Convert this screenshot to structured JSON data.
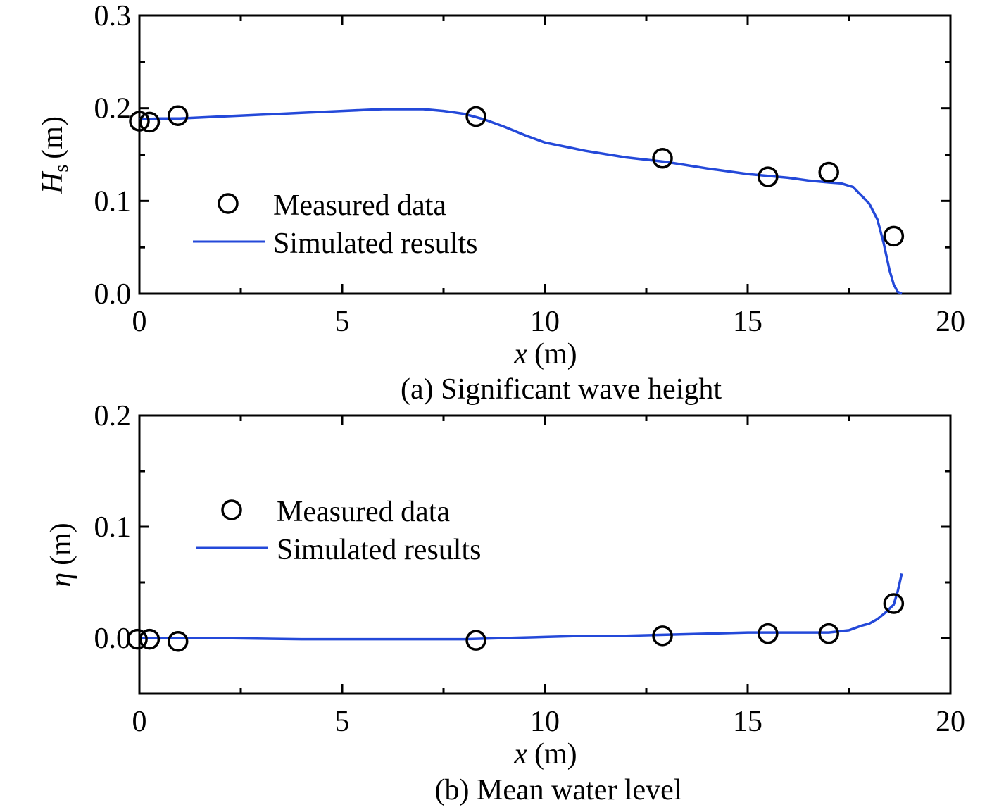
{
  "chart_data": [
    {
      "type": "line",
      "caption": "(a) Significant wave height",
      "xlabel_var": "x",
      "xlabel_unit": "(m)",
      "ylabel_var": "H",
      "ylabel_sub": "s",
      "ylabel_unit": "(m)",
      "xlim": [
        0,
        20
      ],
      "ylim": [
        0,
        0.3
      ],
      "xticks": [
        0,
        5,
        10,
        15,
        20
      ],
      "yticks": [
        0.0,
        0.1,
        0.2,
        0.3
      ],
      "xtick_labels": [
        "0",
        "5",
        "10",
        "15",
        "20"
      ],
      "ytick_labels": [
        "0.0",
        "0.1",
        "0.2",
        "0.3"
      ],
      "legend_position": "center-left",
      "series": [
        {
          "name": "Measured data",
          "kind": "scatter",
          "marker": "open-circle",
          "color": "#000000",
          "x": [
            0.0,
            0.25,
            0.95,
            8.3,
            12.9,
            15.5,
            17.0,
            18.6
          ],
          "y": [
            0.186,
            0.185,
            0.192,
            0.191,
            0.146,
            0.126,
            0.131,
            0.062
          ]
        },
        {
          "name": "Simulated results",
          "kind": "line",
          "color": "#2449d9",
          "x": [
            0.0,
            0.5,
            1.0,
            2.0,
            3.0,
            4.0,
            5.0,
            6.0,
            6.5,
            7.0,
            7.5,
            8.0,
            8.5,
            9.0,
            9.5,
            10.0,
            11.0,
            12.0,
            13.0,
            14.0,
            15.0,
            16.0,
            16.5,
            17.0,
            17.3,
            17.6,
            17.8,
            18.0,
            18.2,
            18.35,
            18.5,
            18.6,
            18.7,
            18.8
          ],
          "y": [
            0.188,
            0.189,
            0.189,
            0.191,
            0.193,
            0.195,
            0.197,
            0.199,
            0.199,
            0.199,
            0.197,
            0.194,
            0.188,
            0.18,
            0.171,
            0.163,
            0.154,
            0.147,
            0.142,
            0.135,
            0.129,
            0.125,
            0.122,
            0.12,
            0.119,
            0.115,
            0.106,
            0.097,
            0.08,
            0.055,
            0.025,
            0.01,
            0.002,
            0.0
          ]
        }
      ]
    },
    {
      "type": "line",
      "caption": "(b) Mean water level",
      "xlabel_var": "x",
      "xlabel_unit": "(m)",
      "ylabel_var": "η",
      "ylabel_sub": "",
      "ylabel_unit": "(m)",
      "xlim": [
        0,
        20
      ],
      "ylim": [
        -0.05,
        0.2
      ],
      "xticks": [
        0,
        5,
        10,
        15,
        20
      ],
      "yticks": [
        0.0,
        0.1,
        0.2
      ],
      "xtick_labels": [
        "0",
        "5",
        "10",
        "15",
        "20"
      ],
      "ytick_labels": [
        "0.0",
        "0.1",
        "0.2"
      ],
      "legend_position": "center-left",
      "series": [
        {
          "name": "Measured data",
          "kind": "scatter",
          "marker": "open-circle",
          "color": "#000000",
          "x": [
            -0.05,
            0.25,
            0.95,
            8.3,
            12.9,
            15.5,
            17.0,
            18.6
          ],
          "y": [
            -0.001,
            -0.001,
            -0.003,
            -0.002,
            0.002,
            0.004,
            0.004,
            0.031
          ]
        },
        {
          "name": "Simulated results",
          "kind": "line",
          "color": "#2449d9",
          "x": [
            0.0,
            2.0,
            4.0,
            6.0,
            7.0,
            8.0,
            9.0,
            10.0,
            11.0,
            12.0,
            13.0,
            14.0,
            15.0,
            16.0,
            17.0,
            17.5,
            17.8,
            18.0,
            18.2,
            18.4,
            18.6,
            18.7,
            18.8
          ],
          "y": [
            0.0,
            0.0,
            -0.001,
            -0.001,
            -0.001,
            -0.001,
            0.0,
            0.001,
            0.002,
            0.002,
            0.003,
            0.004,
            0.005,
            0.005,
            0.005,
            0.007,
            0.011,
            0.013,
            0.017,
            0.023,
            0.03,
            0.042,
            0.058
          ]
        }
      ]
    }
  ]
}
